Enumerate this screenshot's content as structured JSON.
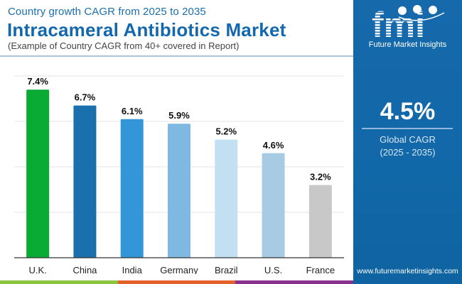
{
  "header": {
    "subtitle": "Country growth CAGR from 2025 to 2035",
    "title": "Intracameral Antibiotics Market",
    "note": "(Example of Country CAGR from 40+ covered in Report)"
  },
  "brand": {
    "logo_letters": "fmi",
    "name": "Future Market Insights",
    "website": "www.futuremarketinsights.com",
    "panel_color": "#1468ab",
    "strip_colors": [
      "#8cc63f",
      "#e4612b",
      "#8b2f8f"
    ]
  },
  "global": {
    "value": "4.5%",
    "label": "Global CAGR",
    "period": "(2025 - 2035)"
  },
  "chart_data": {
    "type": "bar",
    "title": "Intracameral Antibiotics Market",
    "subtitle": "Country growth CAGR from 2025 to 2035",
    "xlabel": "",
    "ylabel": "",
    "categories": [
      "U.K.",
      "China",
      "India",
      "Germany",
      "Brazil",
      "U.S.",
      "France"
    ],
    "values": [
      7.4,
      6.7,
      6.1,
      5.9,
      5.2,
      4.6,
      3.2
    ],
    "value_labels": [
      "7.4%",
      "6.7%",
      "6.1%",
      "5.9%",
      "5.2%",
      "4.6%",
      "3.2%"
    ],
    "colors": [
      "#0aab35",
      "#1a70ad",
      "#3396d8",
      "#7fb9e2",
      "#c3e0f3",
      "#a7cbe3",
      "#c8c8c8"
    ],
    "ylim": [
      0,
      8
    ],
    "gridlines": [
      2,
      4,
      6,
      8
    ],
    "grid": true,
    "legend": "none"
  }
}
